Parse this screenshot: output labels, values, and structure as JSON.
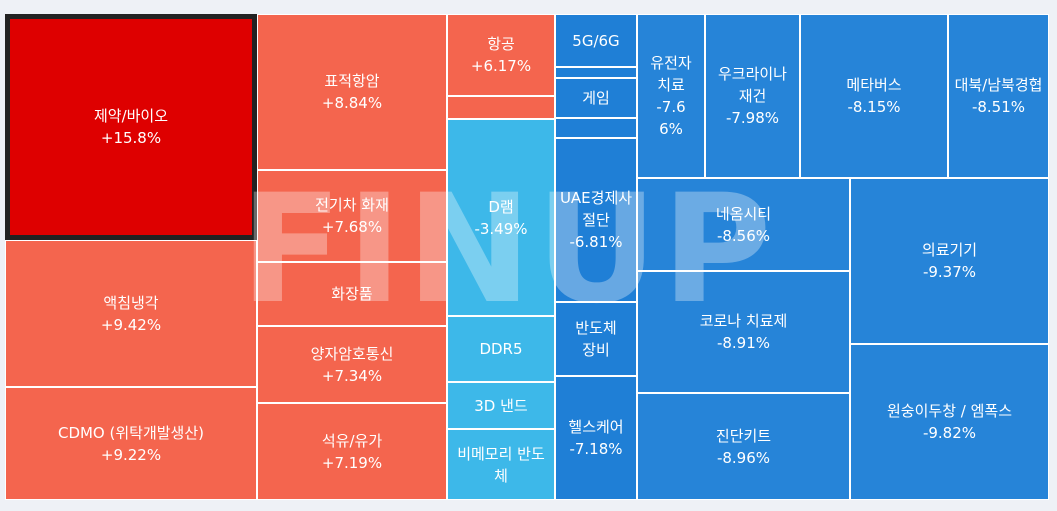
{
  "watermark": "FINUP",
  "chart_data": {
    "type": "treemap",
    "title": "",
    "unit": "%",
    "items": [
      {
        "name": "제약/바이오",
        "value": "+15.8%",
        "selected": true
      },
      {
        "name": "액침냉각",
        "value": "+9.42%"
      },
      {
        "name": "CDMO (위탁개발생산)",
        "value": "+9.22%"
      },
      {
        "name": "표적항암",
        "value": "+8.84%"
      },
      {
        "name": "전기차 화재",
        "value": "+7.68%"
      },
      {
        "name": "화장품",
        "value": ""
      },
      {
        "name": "양자암호통신",
        "value": "+7.34%"
      },
      {
        "name": "석유/유가",
        "value": "+7.19%"
      },
      {
        "name": "항공",
        "value": "+6.17%"
      },
      {
        "name": "",
        "value": ""
      },
      {
        "name": "D램",
        "value": "-3.49%"
      },
      {
        "name": "DDR5",
        "value": ""
      },
      {
        "name": "3D 낸드",
        "value": ""
      },
      {
        "name": "비메모리 반도체",
        "value": ""
      },
      {
        "name": "5G/6G",
        "value": ""
      },
      {
        "name": "",
        "value": ""
      },
      {
        "name": "게임",
        "value": ""
      },
      {
        "name": "",
        "value": ""
      },
      {
        "name": "UAE경제사절단",
        "value": "-6.81%"
      },
      {
        "name": "반도체 장비",
        "value": ""
      },
      {
        "name": "헬스케어",
        "value": "-7.18%"
      },
      {
        "name": "유전자 치료",
        "value": "-7.66%"
      },
      {
        "name": "우크라이나 재건",
        "value": "-7.98%"
      },
      {
        "name": "메타버스",
        "value": "-8.15%"
      },
      {
        "name": "대북/남북경협",
        "value": "-8.51%"
      },
      {
        "name": "네옴시티",
        "value": "-8.56%"
      },
      {
        "name": "코로나 치료제",
        "value": "-8.91%"
      },
      {
        "name": "진단키트",
        "value": "-8.96%"
      },
      {
        "name": "의료기기",
        "value": "-9.37%"
      },
      {
        "name": "원숭이두창 / 엠폭스",
        "value": "-9.82%"
      }
    ]
  }
}
